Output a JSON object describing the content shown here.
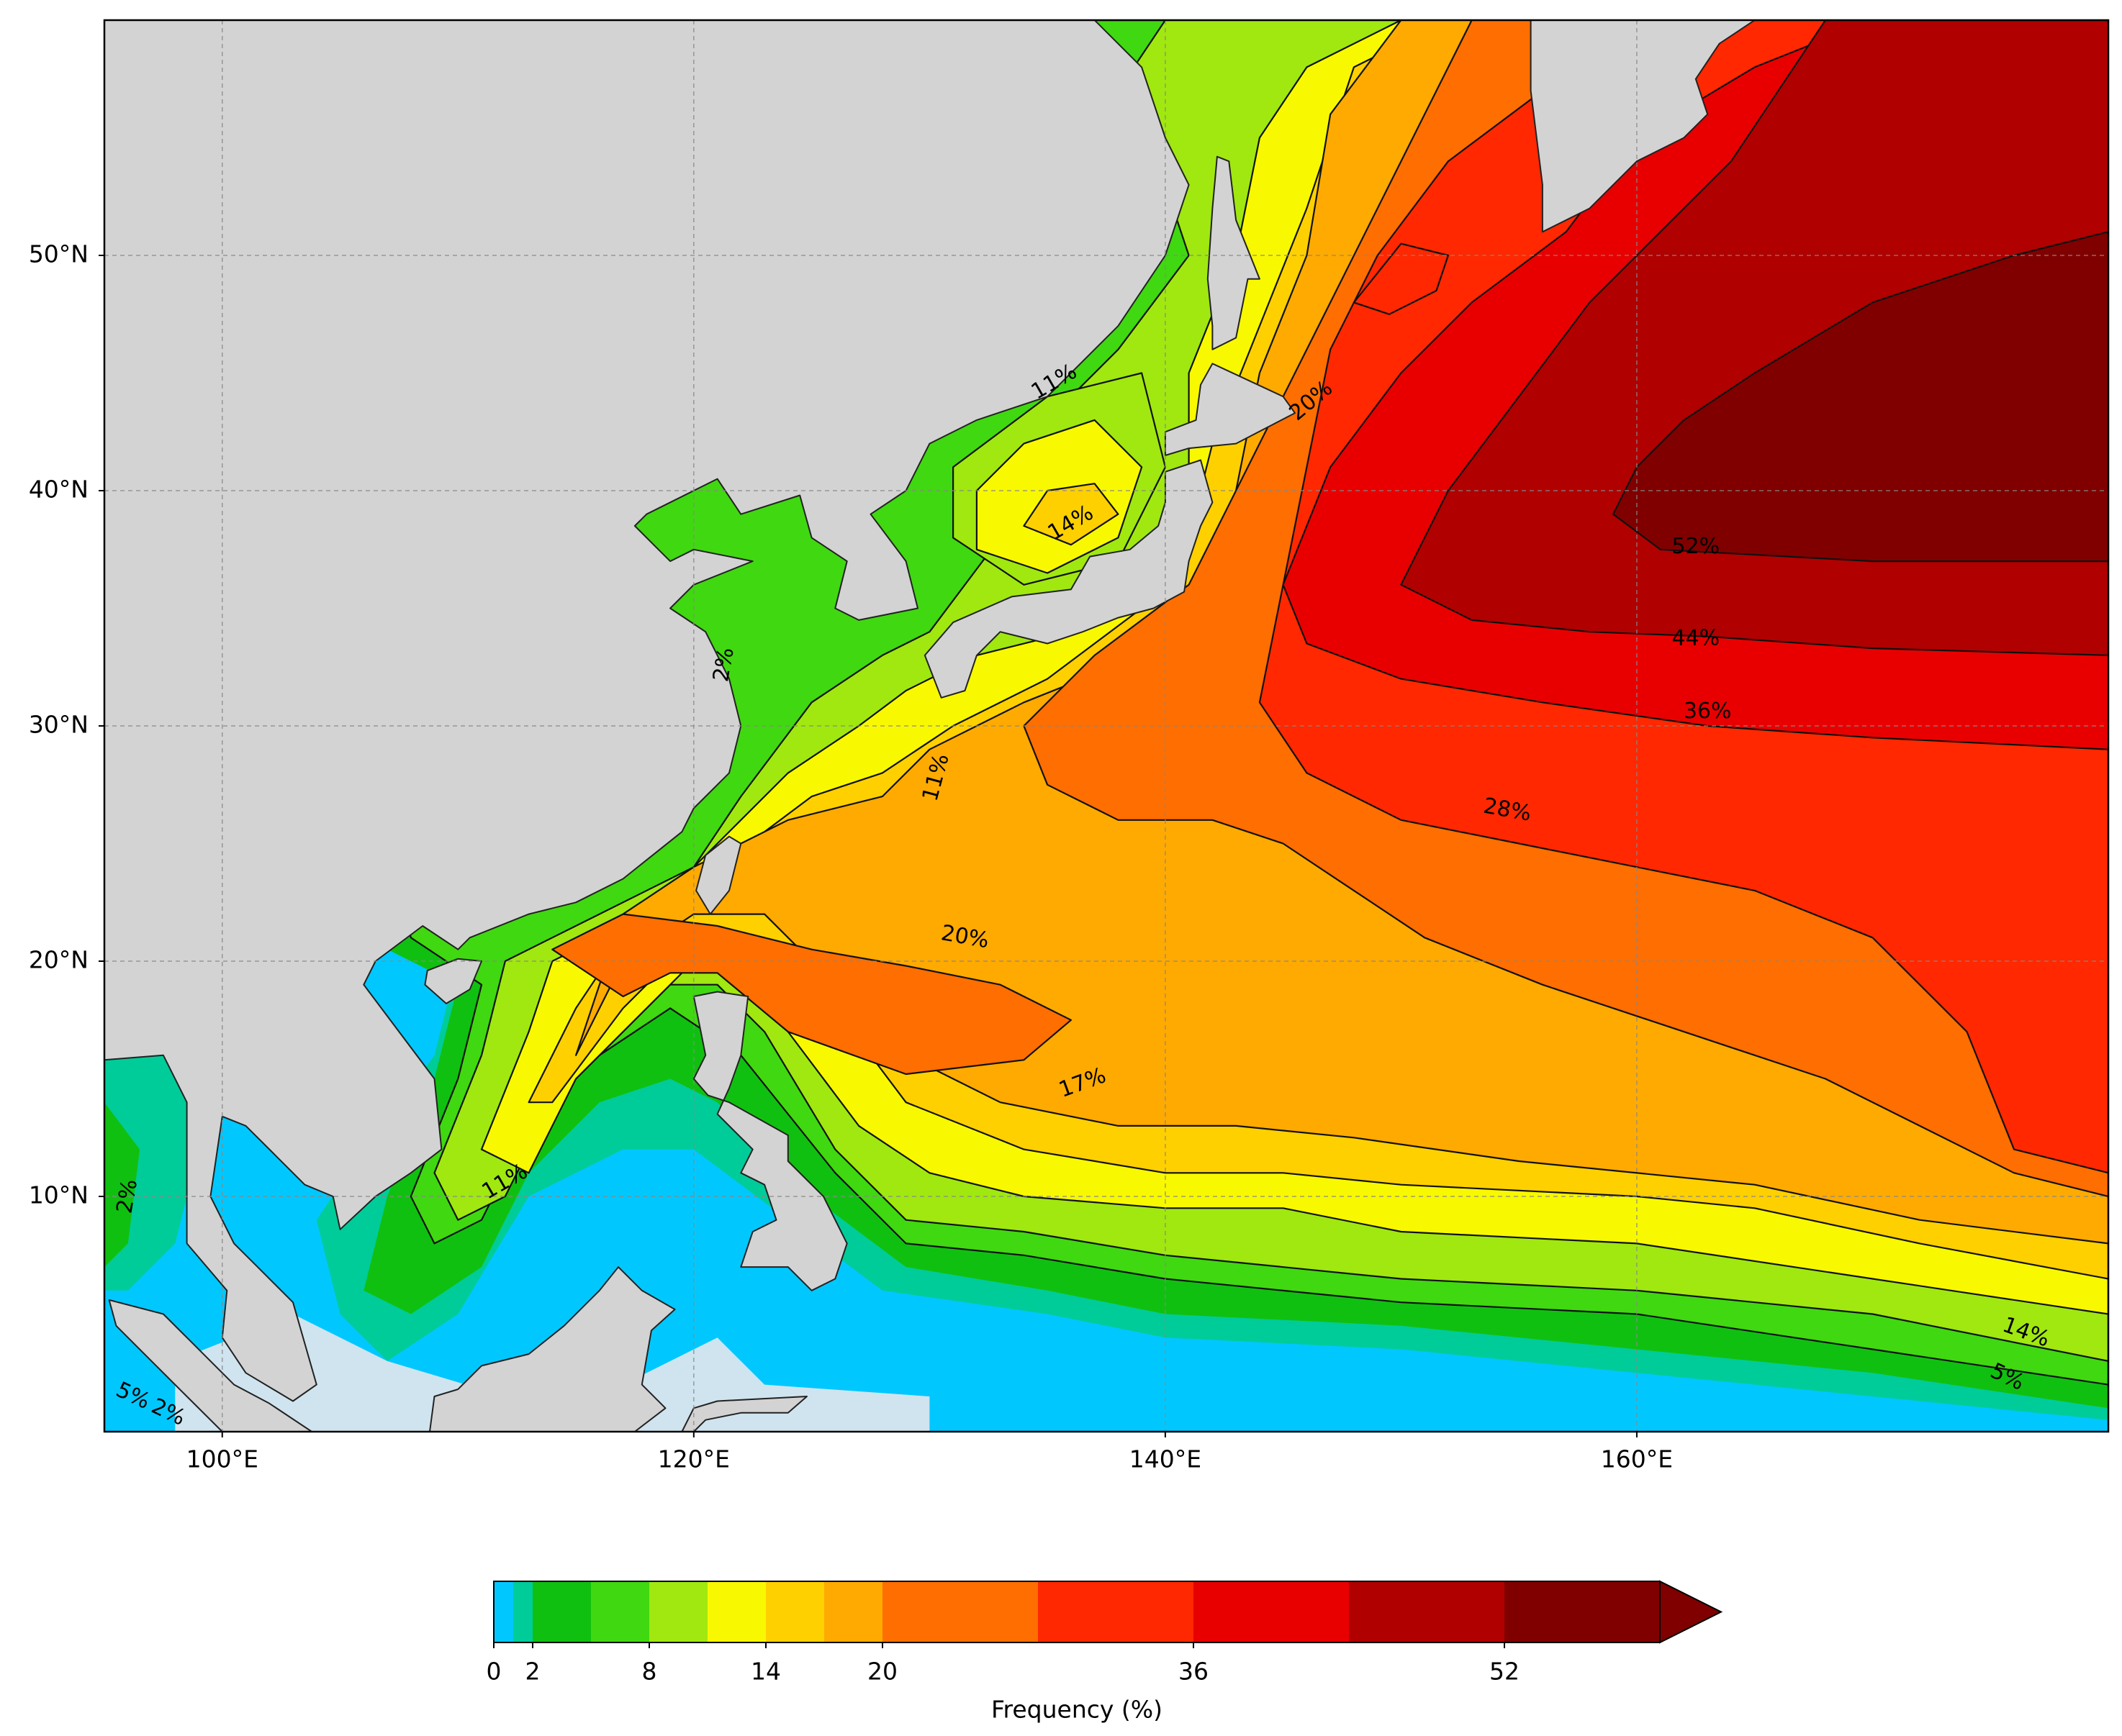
{
  "chart_data": {
    "type": "contourf",
    "xlim": [
      95,
      180
    ],
    "ylim": [
      0,
      60
    ],
    "xticks": [
      {
        "value": 100,
        "label": "100°E"
      },
      {
        "value": 120,
        "label": "120°E"
      },
      {
        "value": 140,
        "label": "140°E"
      },
      {
        "value": 160,
        "label": "160°E"
      }
    ],
    "yticks": [
      {
        "value": 10,
        "label": "10°N"
      },
      {
        "value": 20,
        "label": "20°N"
      },
      {
        "value": 30,
        "label": "30°N"
      },
      {
        "value": 40,
        "label": "40°N"
      },
      {
        "value": 50,
        "label": "50°N"
      }
    ],
    "grid": true,
    "land_color": "#d3d3d3",
    "colorbar": {
      "label": "Frequency (%)",
      "levels": [
        0,
        1,
        2,
        5,
        8,
        11,
        14,
        17,
        20,
        28,
        36,
        44,
        52,
        60
      ],
      "colors": [
        "#00c8ff",
        "#00cc99",
        "#10c010",
        "#40d810",
        "#a0e810",
        "#f8f800",
        "#ffd000",
        "#ffaa00",
        "#ff6e00",
        "#ff2800",
        "#e80000",
        "#b00000",
        "#800000"
      ],
      "extend": "max",
      "ticks": [
        0,
        2,
        8,
        14,
        20,
        36,
        52
      ]
    },
    "contour_labels": [
      {
        "value": 52,
        "label": "52%"
      },
      {
        "value": 44,
        "label": "44%"
      },
      {
        "value": 36,
        "label": "36%"
      },
      {
        "value": 28,
        "label": "28%"
      },
      {
        "value": 20,
        "label": "20%"
      },
      {
        "value": 17,
        "label": "17%"
      },
      {
        "value": 11,
        "label": "11%"
      },
      {
        "value": 11,
        "label": "11%"
      },
      {
        "value": 11,
        "label": "11%"
      },
      {
        "value": 14,
        "label": "14%"
      },
      {
        "value": 20,
        "label": "20%"
      },
      {
        "value": 14,
        "label": "14%"
      },
      {
        "value": 5,
        "label": "5%"
      },
      {
        "value": 2,
        "label": "2%"
      },
      {
        "value": 2,
        "label": "2%"
      },
      {
        "value": 5,
        "label": "5%"
      },
      {
        "value": 2,
        "label": "2%"
      }
    ]
  }
}
